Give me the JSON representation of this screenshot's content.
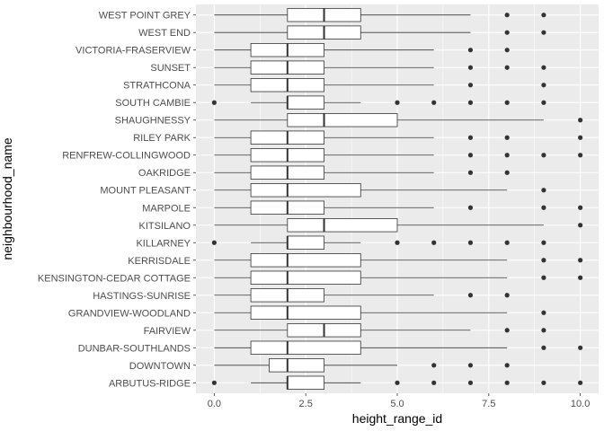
{
  "chart_data": {
    "type": "boxplot",
    "orientation": "horizontal",
    "xlabel": "height_range_id",
    "ylabel": "neighbourhood_name",
    "xlim": [
      -0.5,
      10.5
    ],
    "x_ticks": [
      0,
      2.5,
      5,
      7.5,
      10
    ],
    "x_tick_labels": [
      "0.0",
      "2.5",
      "5.0",
      "7.5",
      "10.0"
    ],
    "grid": true,
    "panel_background": "#ebebeb",
    "categories": [
      {
        "name": "WEST POINT GREY",
        "whisker_low": 0,
        "q1": 2,
        "median": 3,
        "q3": 4,
        "whisker_high": 7,
        "outliers": [
          8,
          9
        ]
      },
      {
        "name": "WEST END",
        "whisker_low": 0,
        "q1": 2,
        "median": 3,
        "q3": 4,
        "whisker_high": 7,
        "outliers": [
          8,
          9
        ]
      },
      {
        "name": "VICTORIA-FRASERVIEW",
        "whisker_low": 0,
        "q1": 1,
        "median": 2,
        "q3": 3,
        "whisker_high": 6,
        "outliers": [
          7,
          8
        ]
      },
      {
        "name": "SUNSET",
        "whisker_low": 0,
        "q1": 1,
        "median": 2,
        "q3": 3,
        "whisker_high": 6,
        "outliers": [
          7,
          8,
          9
        ]
      },
      {
        "name": "STRATHCONA",
        "whisker_low": 0,
        "q1": 1,
        "median": 2,
        "q3": 3,
        "whisker_high": 6,
        "outliers": [
          7,
          9
        ]
      },
      {
        "name": "SOUTH CAMBIE",
        "whisker_low": 1,
        "q1": 2,
        "median": 2,
        "q3": 3,
        "whisker_high": 4,
        "outliers": [
          0,
          5,
          6,
          7,
          8,
          9
        ]
      },
      {
        "name": "SHAUGHNESSY",
        "whisker_low": 0,
        "q1": 2,
        "median": 3,
        "q3": 5,
        "whisker_high": 9,
        "outliers": [
          10
        ]
      },
      {
        "name": "RILEY PARK",
        "whisker_low": 0,
        "q1": 1,
        "median": 2,
        "q3": 3,
        "whisker_high": 6,
        "outliers": [
          7,
          8,
          10
        ]
      },
      {
        "name": "RENFREW-COLLINGWOOD",
        "whisker_low": 0,
        "q1": 1,
        "median": 2,
        "q3": 3,
        "whisker_high": 6,
        "outliers": [
          7,
          8,
          9,
          10
        ]
      },
      {
        "name": "OAKRIDGE",
        "whisker_low": 0,
        "q1": 1,
        "median": 2,
        "q3": 3,
        "whisker_high": 6,
        "outliers": [
          7,
          8
        ]
      },
      {
        "name": "MOUNT PLEASANT",
        "whisker_low": 0,
        "q1": 1,
        "median": 2,
        "q3": 4,
        "whisker_high": 8,
        "outliers": [
          9
        ]
      },
      {
        "name": "MARPOLE",
        "whisker_low": 0,
        "q1": 1,
        "median": 2,
        "q3": 3,
        "whisker_high": 6,
        "outliers": [
          7,
          9,
          10
        ]
      },
      {
        "name": "KITSILANO",
        "whisker_low": 0,
        "q1": 2,
        "median": 3,
        "q3": 5,
        "whisker_high": 9,
        "outliers": [
          10
        ]
      },
      {
        "name": "KILLARNEY",
        "whisker_low": 1,
        "q1": 2,
        "median": 2,
        "q3": 3,
        "whisker_high": 4,
        "outliers": [
          0,
          5,
          6,
          7,
          8,
          9
        ]
      },
      {
        "name": "KERRISDALE",
        "whisker_low": 0,
        "q1": 1,
        "median": 2,
        "q3": 4,
        "whisker_high": 8,
        "outliers": [
          9,
          10
        ]
      },
      {
        "name": "KENSINGTON-CEDAR COTTAGE",
        "whisker_low": 0,
        "q1": 1,
        "median": 2,
        "q3": 4,
        "whisker_high": 8,
        "outliers": [
          9,
          10
        ]
      },
      {
        "name": "HASTINGS-SUNRISE",
        "whisker_low": 0,
        "q1": 1,
        "median": 2,
        "q3": 3,
        "whisker_high": 6,
        "outliers": [
          7,
          8
        ]
      },
      {
        "name": "GRANDVIEW-WOODLAND",
        "whisker_low": 0,
        "q1": 1,
        "median": 2,
        "q3": 4,
        "whisker_high": 8,
        "outliers": [
          9
        ]
      },
      {
        "name": "FAIRVIEW",
        "whisker_low": 0,
        "q1": 2,
        "median": 3,
        "q3": 4,
        "whisker_high": 7,
        "outliers": [
          8,
          9
        ]
      },
      {
        "name": "DUNBAR-SOUTHLANDS",
        "whisker_low": 0,
        "q1": 1,
        "median": 2,
        "q3": 4,
        "whisker_high": 8,
        "outliers": [
          9,
          10
        ]
      },
      {
        "name": "DOWNTOWN",
        "whisker_low": 0,
        "q1": 1.5,
        "median": 2,
        "q3": 3,
        "whisker_high": 5,
        "outliers": [
          6,
          7,
          8
        ]
      },
      {
        "name": "ARBUTUS-RIDGE",
        "whisker_low": 1,
        "q1": 2,
        "median": 2,
        "q3": 3,
        "whisker_high": 4,
        "outliers": [
          0,
          5,
          6,
          7,
          8,
          9,
          10
        ]
      }
    ]
  }
}
